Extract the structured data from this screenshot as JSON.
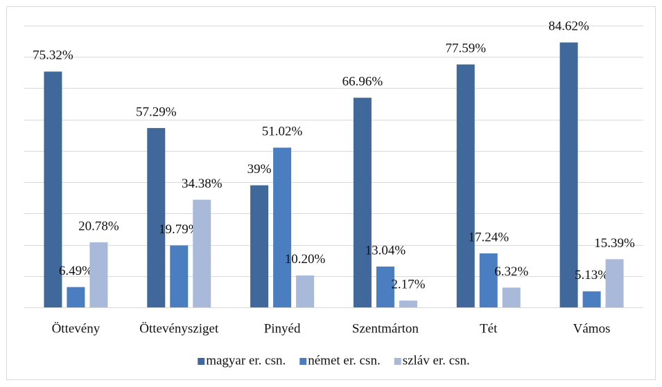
{
  "chart_data": {
    "type": "bar",
    "categories": [
      "Öttevény",
      "Öttevénysziget",
      "Pinyéd",
      "Szentmárton",
      "Tét",
      "Vámos"
    ],
    "series": [
      {
        "name": "magyar er. csn.",
        "color": "#41689a",
        "values": [
          75.32,
          57.29,
          39,
          66.96,
          77.59,
          84.62
        ],
        "value_labels": [
          "75.32%",
          "57.29%",
          "39%",
          "66.96%",
          "77.59%",
          "84.62%"
        ]
      },
      {
        "name": "német er. csn.",
        "color": "#4a7ec0",
        "values": [
          6.49,
          19.79,
          51.02,
          13.04,
          17.24,
          5.13
        ],
        "value_labels": [
          "6.49%",
          "19.79%",
          "51.02%",
          "13.04%",
          "17.24%",
          "5.13%"
        ]
      },
      {
        "name": "szláv er. csn.",
        "color": "#a9b9d9",
        "values": [
          20.78,
          34.38,
          10.2,
          2.17,
          6.32,
          15.39
        ],
        "value_labels": [
          "20.78%",
          "34.38%",
          "10.20%",
          "2.17%",
          "6.32%",
          "15.39%"
        ]
      }
    ],
    "ylim": [
      0,
      90
    ],
    "yticks": [
      0,
      10,
      20,
      30,
      40,
      50,
      60,
      70,
      80,
      90
    ],
    "grid": true,
    "legend": "bottom"
  }
}
